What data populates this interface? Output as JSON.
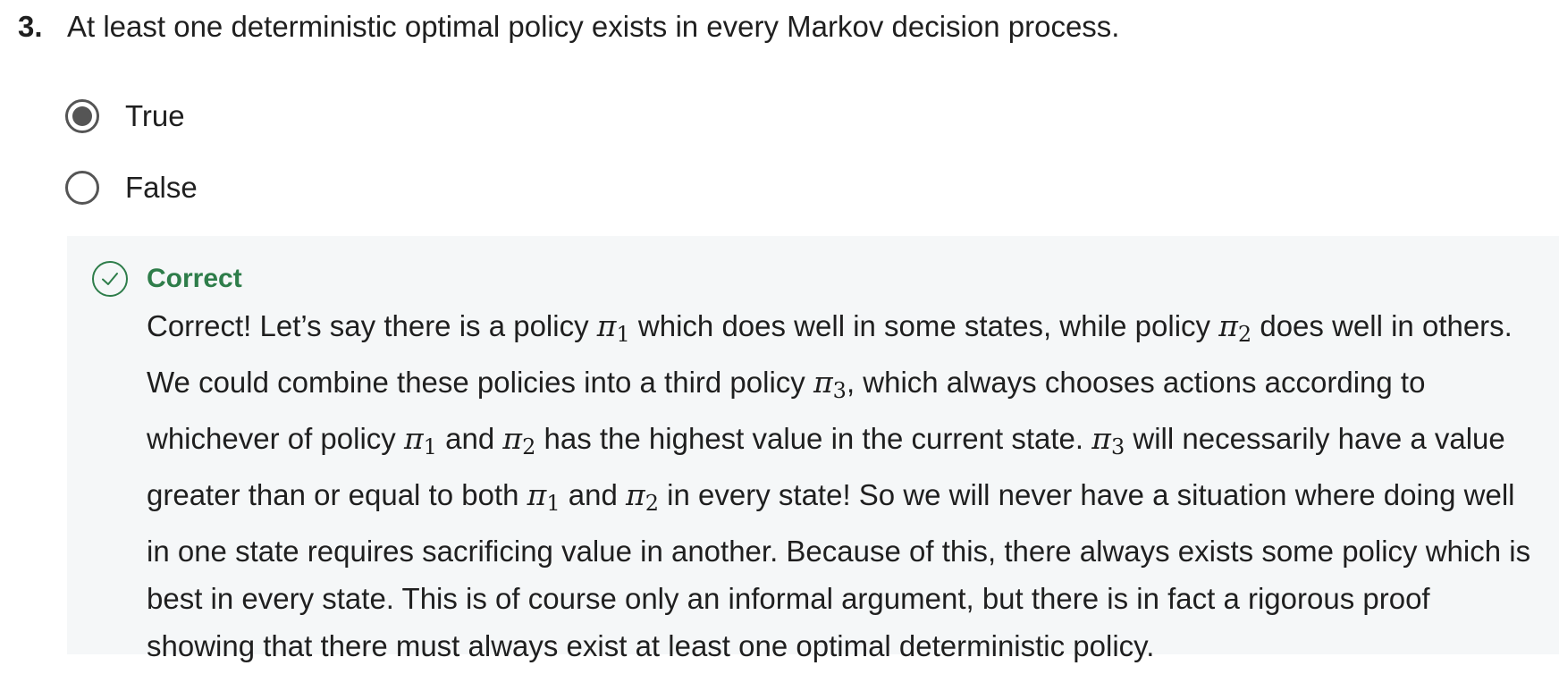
{
  "question": {
    "number": "3.",
    "text": "At least one deterministic optimal policy exists in every Markov decision process."
  },
  "options": [
    {
      "label": "True",
      "selected": true
    },
    {
      "label": "False",
      "selected": false
    }
  ],
  "feedback": {
    "status": "Correct",
    "status_color": "#2e7d4a",
    "icon": "check-circle-icon",
    "pi_symbol": "π",
    "subscripts": {
      "one": "1",
      "two": "2",
      "three": "3"
    },
    "lines": {
      "l1_a": "Correct! Let’s say there is a policy ",
      "l1_b": " which does well in some states, while policy ",
      "l1_c": " does well in others.",
      "l2_a": "We could combine these policies into a third policy ",
      "l2_b": ", which always chooses actions according to",
      "l3_a": "whichever of policy ",
      "l3_b": " and ",
      "l3_c": " has the highest value in the current state.  ",
      "l3_d": " will necessarily have a value",
      "l4_a": "greater than or equal to both ",
      "l4_b": " and ",
      "l4_c": " in every state! So we will never have a situation where doing well",
      "l5": "in one state requires sacrificing value in another.  Because of this, there always exists some policy which is",
      "l6": "best in every state. This is of course only an informal argument, but there is in fact a rigorous proof",
      "l7": "showing that there must always exist at least one optimal deterministic policy."
    }
  }
}
